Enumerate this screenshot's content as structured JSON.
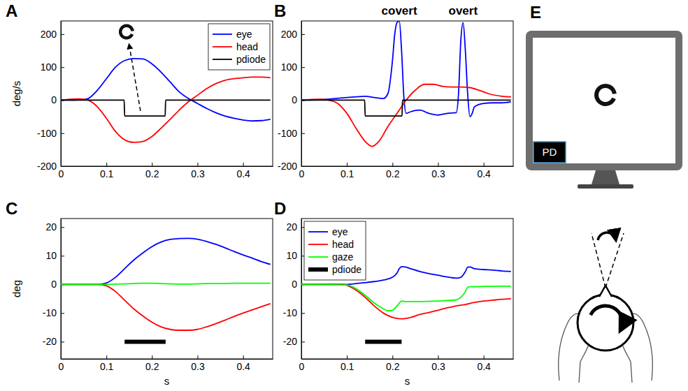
{
  "chart_data": [
    {
      "type": "line",
      "panel_label": "A",
      "ylabel": "deg/s",
      "xlim": [
        0,
        0.465
      ],
      "ylim": [
        -200,
        240
      ],
      "xticks": [
        0,
        0.1,
        0.2,
        0.3,
        0.4
      ],
      "yticks": [
        -200,
        -100,
        0,
        100,
        200
      ],
      "legend": "upper right",
      "series": [
        {
          "name": "eye",
          "color": "#0000ff",
          "line_style": "solid",
          "x": [
            0,
            0.02,
            0.04,
            0.05,
            0.06,
            0.08,
            0.1,
            0.12,
            0.14,
            0.16,
            0.18,
            0.2,
            0.22,
            0.24,
            0.26,
            0.28,
            0.3,
            0.32,
            0.34,
            0.36,
            0.38,
            0.4,
            0.42,
            0.44,
            0.46
          ],
          "values": [
            0,
            0,
            1,
            2,
            5,
            30,
            65,
            100,
            120,
            126,
            125,
            110,
            85,
            55,
            25,
            5,
            -10,
            -25,
            -38,
            -48,
            -55,
            -60,
            -63,
            -62,
            -58
          ]
        },
        {
          "name": "head",
          "color": "#ff0000",
          "line_style": "solid",
          "x": [
            0,
            0.02,
            0.04,
            0.05,
            0.06,
            0.08,
            0.1,
            0.12,
            0.14,
            0.16,
            0.18,
            0.2,
            0.22,
            0.24,
            0.26,
            0.28,
            0.3,
            0.32,
            0.34,
            0.36,
            0.38,
            0.4,
            0.42,
            0.44,
            0.46
          ],
          "values": [
            0,
            3,
            4,
            3,
            0,
            -20,
            -55,
            -95,
            -120,
            -128,
            -125,
            -110,
            -85,
            -58,
            -30,
            -5,
            15,
            35,
            50,
            60,
            65,
            68,
            70,
            70,
            68
          ]
        },
        {
          "name": "pdiode",
          "color": "#000000",
          "line_style": "solid",
          "x": [
            0,
            0.139,
            0.14,
            0.229,
            0.23,
            0.46
          ],
          "values": [
            0,
            0,
            -48,
            -48,
            0,
            0
          ]
        }
      ]
    },
    {
      "type": "line",
      "panel_label": "B",
      "xlim": [
        0,
        0.465
      ],
      "ylim": [
        -200,
        240
      ],
      "xticks": [
        0,
        0.1,
        0.2,
        0.3,
        0.4
      ],
      "yticks": [
        -200,
        -100,
        0,
        100,
        200
      ],
      "annotations": [
        {
          "text": "covert",
          "x": 0.215
        },
        {
          "text": "overt",
          "x": 0.355
        }
      ],
      "series": [
        {
          "color": "#0000ff",
          "line_style": "solid",
          "x": [
            0,
            0.05,
            0.1,
            0.12,
            0.14,
            0.16,
            0.18,
            0.19,
            0.2,
            0.205,
            0.21,
            0.215,
            0.22,
            0.225,
            0.23,
            0.24,
            0.26,
            0.28,
            0.3,
            0.32,
            0.34,
            0.345,
            0.35,
            0.355,
            0.36,
            0.365,
            0.37,
            0.375,
            0.38,
            0.4,
            0.42,
            0.44,
            0.46
          ],
          "values": [
            0,
            2,
            8,
            10,
            12,
            8,
            5,
            20,
            120,
            200,
            235,
            240,
            150,
            10,
            -40,
            -35,
            -30,
            -40,
            -45,
            -40,
            -38,
            20,
            180,
            235,
            150,
            20,
            -50,
            -40,
            -20,
            -10,
            -8,
            -8,
            -5
          ]
        },
        {
          "color": "#ff0000",
          "line_style": "solid",
          "x": [
            0,
            0.04,
            0.06,
            0.08,
            0.1,
            0.12,
            0.14,
            0.155,
            0.17,
            0.19,
            0.21,
            0.23,
            0.25,
            0.27,
            0.29,
            0.31,
            0.33,
            0.35,
            0.37,
            0.39,
            0.41,
            0.44,
            0.46
          ],
          "values": [
            0,
            3,
            0,
            -10,
            -40,
            -85,
            -125,
            -140,
            -125,
            -80,
            -40,
            0,
            30,
            48,
            48,
            42,
            40,
            40,
            38,
            30,
            20,
            12,
            10
          ]
        },
        {
          "color": "#000000",
          "line_style": "solid",
          "x": [
            0,
            0.139,
            0.14,
            0.221,
            0.222,
            0.46
          ],
          "values": [
            0,
            0,
            -48,
            -48,
            0,
            0
          ]
        }
      ]
    },
    {
      "type": "line",
      "panel_label": "C",
      "xlabel": "s",
      "ylabel": "deg",
      "xlim": [
        0,
        0.465
      ],
      "ylim": [
        -26,
        23
      ],
      "xticks": [
        0,
        0.1,
        0.2,
        0.3,
        0.4
      ],
      "yticks": [
        -20,
        -10,
        0,
        10,
        20
      ],
      "series": [
        {
          "color": "#0000ff",
          "line_style": "solid",
          "x": [
            0,
            0.08,
            0.1,
            0.12,
            0.14,
            0.16,
            0.18,
            0.2,
            0.22,
            0.24,
            0.26,
            0.28,
            0.3,
            0.32,
            0.34,
            0.36,
            0.38,
            0.4,
            0.42,
            0.44,
            0.46
          ],
          "values": [
            0,
            0,
            0.5,
            2.5,
            5.5,
            8.5,
            11,
            13.2,
            14.8,
            15.7,
            16,
            16.1,
            15.8,
            15,
            14,
            12.8,
            11.5,
            10.3,
            9.2,
            8,
            7
          ]
        },
        {
          "color": "#ff0000",
          "line_style": "solid",
          "x": [
            0,
            0.08,
            0.1,
            0.12,
            0.14,
            0.16,
            0.18,
            0.2,
            0.22,
            0.24,
            0.26,
            0.28,
            0.3,
            0.32,
            0.34,
            0.36,
            0.38,
            0.4,
            0.42,
            0.44,
            0.46
          ],
          "values": [
            0,
            0,
            -0.5,
            -2.5,
            -5.5,
            -8.5,
            -11,
            -13.2,
            -14.8,
            -15.7,
            -16,
            -16,
            -15.7,
            -14.8,
            -13.7,
            -12.5,
            -11.2,
            -10,
            -8.9,
            -7.8,
            -6.7
          ]
        },
        {
          "color": "#00ff00",
          "line_style": "solid",
          "x": [
            0,
            0.08,
            0.1,
            0.12,
            0.14,
            0.16,
            0.18,
            0.2,
            0.22,
            0.24,
            0.26,
            0.28,
            0.3,
            0.32,
            0.34,
            0.36,
            0.38,
            0.4,
            0.42,
            0.44,
            0.46
          ],
          "values": [
            0,
            0,
            0,
            0.1,
            0.2,
            0.3,
            0.4,
            0.4,
            0.3,
            0.2,
            0.1,
            0.1,
            0.2,
            0.3,
            0.3,
            0.3,
            0.4,
            0.4,
            0.4,
            0.4,
            0.4
          ]
        },
        {
          "color": "#000000",
          "line_style": "thick",
          "x": [
            0.14,
            0.23
          ],
          "values": [
            -20,
            -20
          ]
        }
      ]
    },
    {
      "type": "line",
      "panel_label": "D",
      "xlabel": "s",
      "xlim": [
        0,
        0.465
      ],
      "ylim": [
        -26,
        23
      ],
      "xticks": [
        0,
        0.1,
        0.2,
        0.3,
        0.4
      ],
      "yticks": [
        -20,
        -10,
        0,
        10,
        20
      ],
      "legend": "upper left",
      "series": [
        {
          "name": "eye",
          "color": "#0000ff",
          "line_style": "solid",
          "x": [
            0,
            0.1,
            0.12,
            0.14,
            0.16,
            0.18,
            0.2,
            0.21,
            0.215,
            0.22,
            0.23,
            0.24,
            0.26,
            0.28,
            0.3,
            0.32,
            0.34,
            0.35,
            0.36,
            0.365,
            0.37,
            0.38,
            0.4,
            0.42,
            0.44,
            0.46
          ],
          "values": [
            0,
            0,
            0.3,
            0.6,
            1,
            1.5,
            2.5,
            4,
            5.5,
            6.2,
            6,
            5.5,
            4.5,
            3.8,
            3.2,
            2.6,
            2.2,
            2.5,
            4.5,
            6,
            6.1,
            5.5,
            5.2,
            5,
            4.7,
            4.5
          ]
        },
        {
          "name": "head",
          "color": "#ff0000",
          "line_style": "solid",
          "x": [
            0,
            0.09,
            0.1,
            0.12,
            0.14,
            0.16,
            0.18,
            0.2,
            0.22,
            0.24,
            0.26,
            0.28,
            0.3,
            0.32,
            0.34,
            0.36,
            0.38,
            0.4,
            0.42,
            0.44,
            0.46
          ],
          "values": [
            0,
            0,
            -0.3,
            -2,
            -4.5,
            -7.5,
            -10,
            -11.5,
            -12,
            -11.5,
            -10.5,
            -9.8,
            -9,
            -8.2,
            -7.5,
            -7,
            -6.3,
            -5.8,
            -5.5,
            -5.2,
            -5
          ]
        },
        {
          "name": "gaze",
          "color": "#00ff00",
          "line_style": "solid",
          "x": [
            0,
            0.1,
            0.12,
            0.14,
            0.16,
            0.18,
            0.19,
            0.2,
            0.21,
            0.215,
            0.22,
            0.23,
            0.26,
            0.3,
            0.34,
            0.35,
            0.36,
            0.365,
            0.37,
            0.38,
            0.4,
            0.44,
            0.46
          ],
          "values": [
            0,
            -0.2,
            -1.5,
            -3.8,
            -6.5,
            -8.5,
            -9.2,
            -9,
            -7.5,
            -6.5,
            -5.8,
            -6,
            -6,
            -5.8,
            -5.4,
            -4.5,
            -2.5,
            -1,
            -0.8,
            -0.8,
            -0.7,
            -0.6,
            -0.6
          ]
        },
        {
          "name": "pdiode",
          "color": "#000000",
          "line_style": "thick",
          "x": [
            0.14,
            0.22
          ],
          "values": [
            -20,
            -20
          ]
        }
      ]
    }
  ],
  "diagram": {
    "panel_label": "E",
    "screen_label": "PD"
  }
}
